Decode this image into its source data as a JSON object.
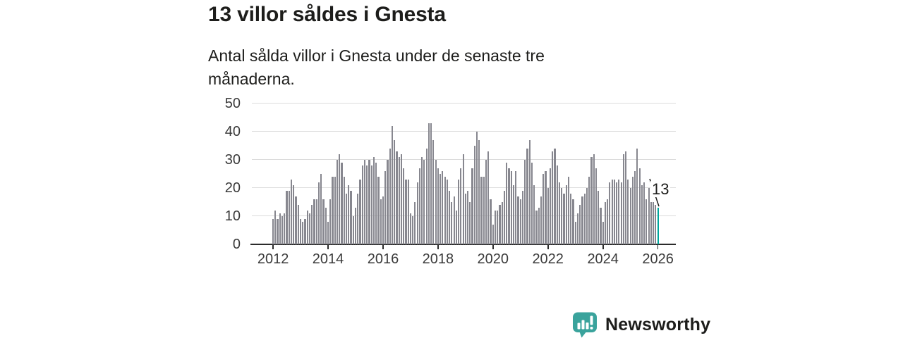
{
  "header": {
    "title": "13 villor såldes i Gnesta",
    "subtitle": "Antal sålda villor i Gnesta under de senaste tre månaderna."
  },
  "chart_data": {
    "type": "bar",
    "title": "13 villor såldes i Gnesta",
    "subtitle": "Antal sålda villor i Gnesta under de senaste tre månaderna.",
    "frequency": "monthly",
    "x_start": "2012-01",
    "x_end": "2026-01",
    "values": [
      9,
      12,
      9,
      11,
      10,
      11,
      19,
      19,
      23,
      21,
      17,
      14,
      9,
      8,
      9,
      12,
      11,
      14,
      16,
      16,
      22,
      25,
      16,
      13,
      8,
      16,
      24,
      24,
      30,
      32,
      29,
      24,
      18,
      21,
      19,
      10,
      13,
      18,
      23,
      28,
      30,
      28,
      30,
      28,
      31,
      29,
      24,
      16,
      17,
      26,
      30,
      34,
      42,
      37,
      33,
      31,
      32,
      27,
      23,
      23,
      11,
      10,
      15,
      22,
      27,
      31,
      30,
      34,
      43,
      43,
      37,
      30,
      27,
      25,
      26,
      24,
      23,
      19,
      15,
      17,
      12,
      23,
      27,
      32,
      18,
      19,
      15,
      27,
      35,
      40,
      37,
      24,
      24,
      30,
      33,
      16,
      7,
      12,
      12,
      14,
      15,
      19,
      29,
      27,
      26,
      21,
      26,
      17,
      16,
      19,
      30,
      34,
      37,
      29,
      21,
      12,
      13,
      17,
      25,
      26,
      20,
      27,
      33,
      34,
      28,
      22,
      20,
      18,
      21,
      24,
      18,
      16,
      8,
      11,
      14,
      17,
      18,
      20,
      24,
      31,
      32,
      27,
      19,
      13,
      8,
      15,
      16,
      22,
      23,
      23,
      22,
      23,
      22,
      32,
      33,
      23,
      20,
      24,
      26,
      34,
      27,
      21,
      22,
      16,
      20,
      15,
      15,
      14,
      13
    ],
    "highlight": {
      "index": 168,
      "value": 13,
      "label": "13"
    },
    "ylim": [
      0,
      50
    ],
    "yticks": [
      0,
      10,
      20,
      30,
      40,
      50
    ],
    "xticks": [
      2012,
      2014,
      2016,
      2018,
      2020,
      2022,
      2024,
      2026
    ],
    "grid": "horizontal",
    "legend": "none",
    "bar_color": "#87878f",
    "highlight_color": "#00a59c",
    "axis_color": "#2b2b2b",
    "gridline_color": "#dcdcdc"
  },
  "branding": {
    "name": "Newsworthy",
    "color": "#3aa39c"
  }
}
